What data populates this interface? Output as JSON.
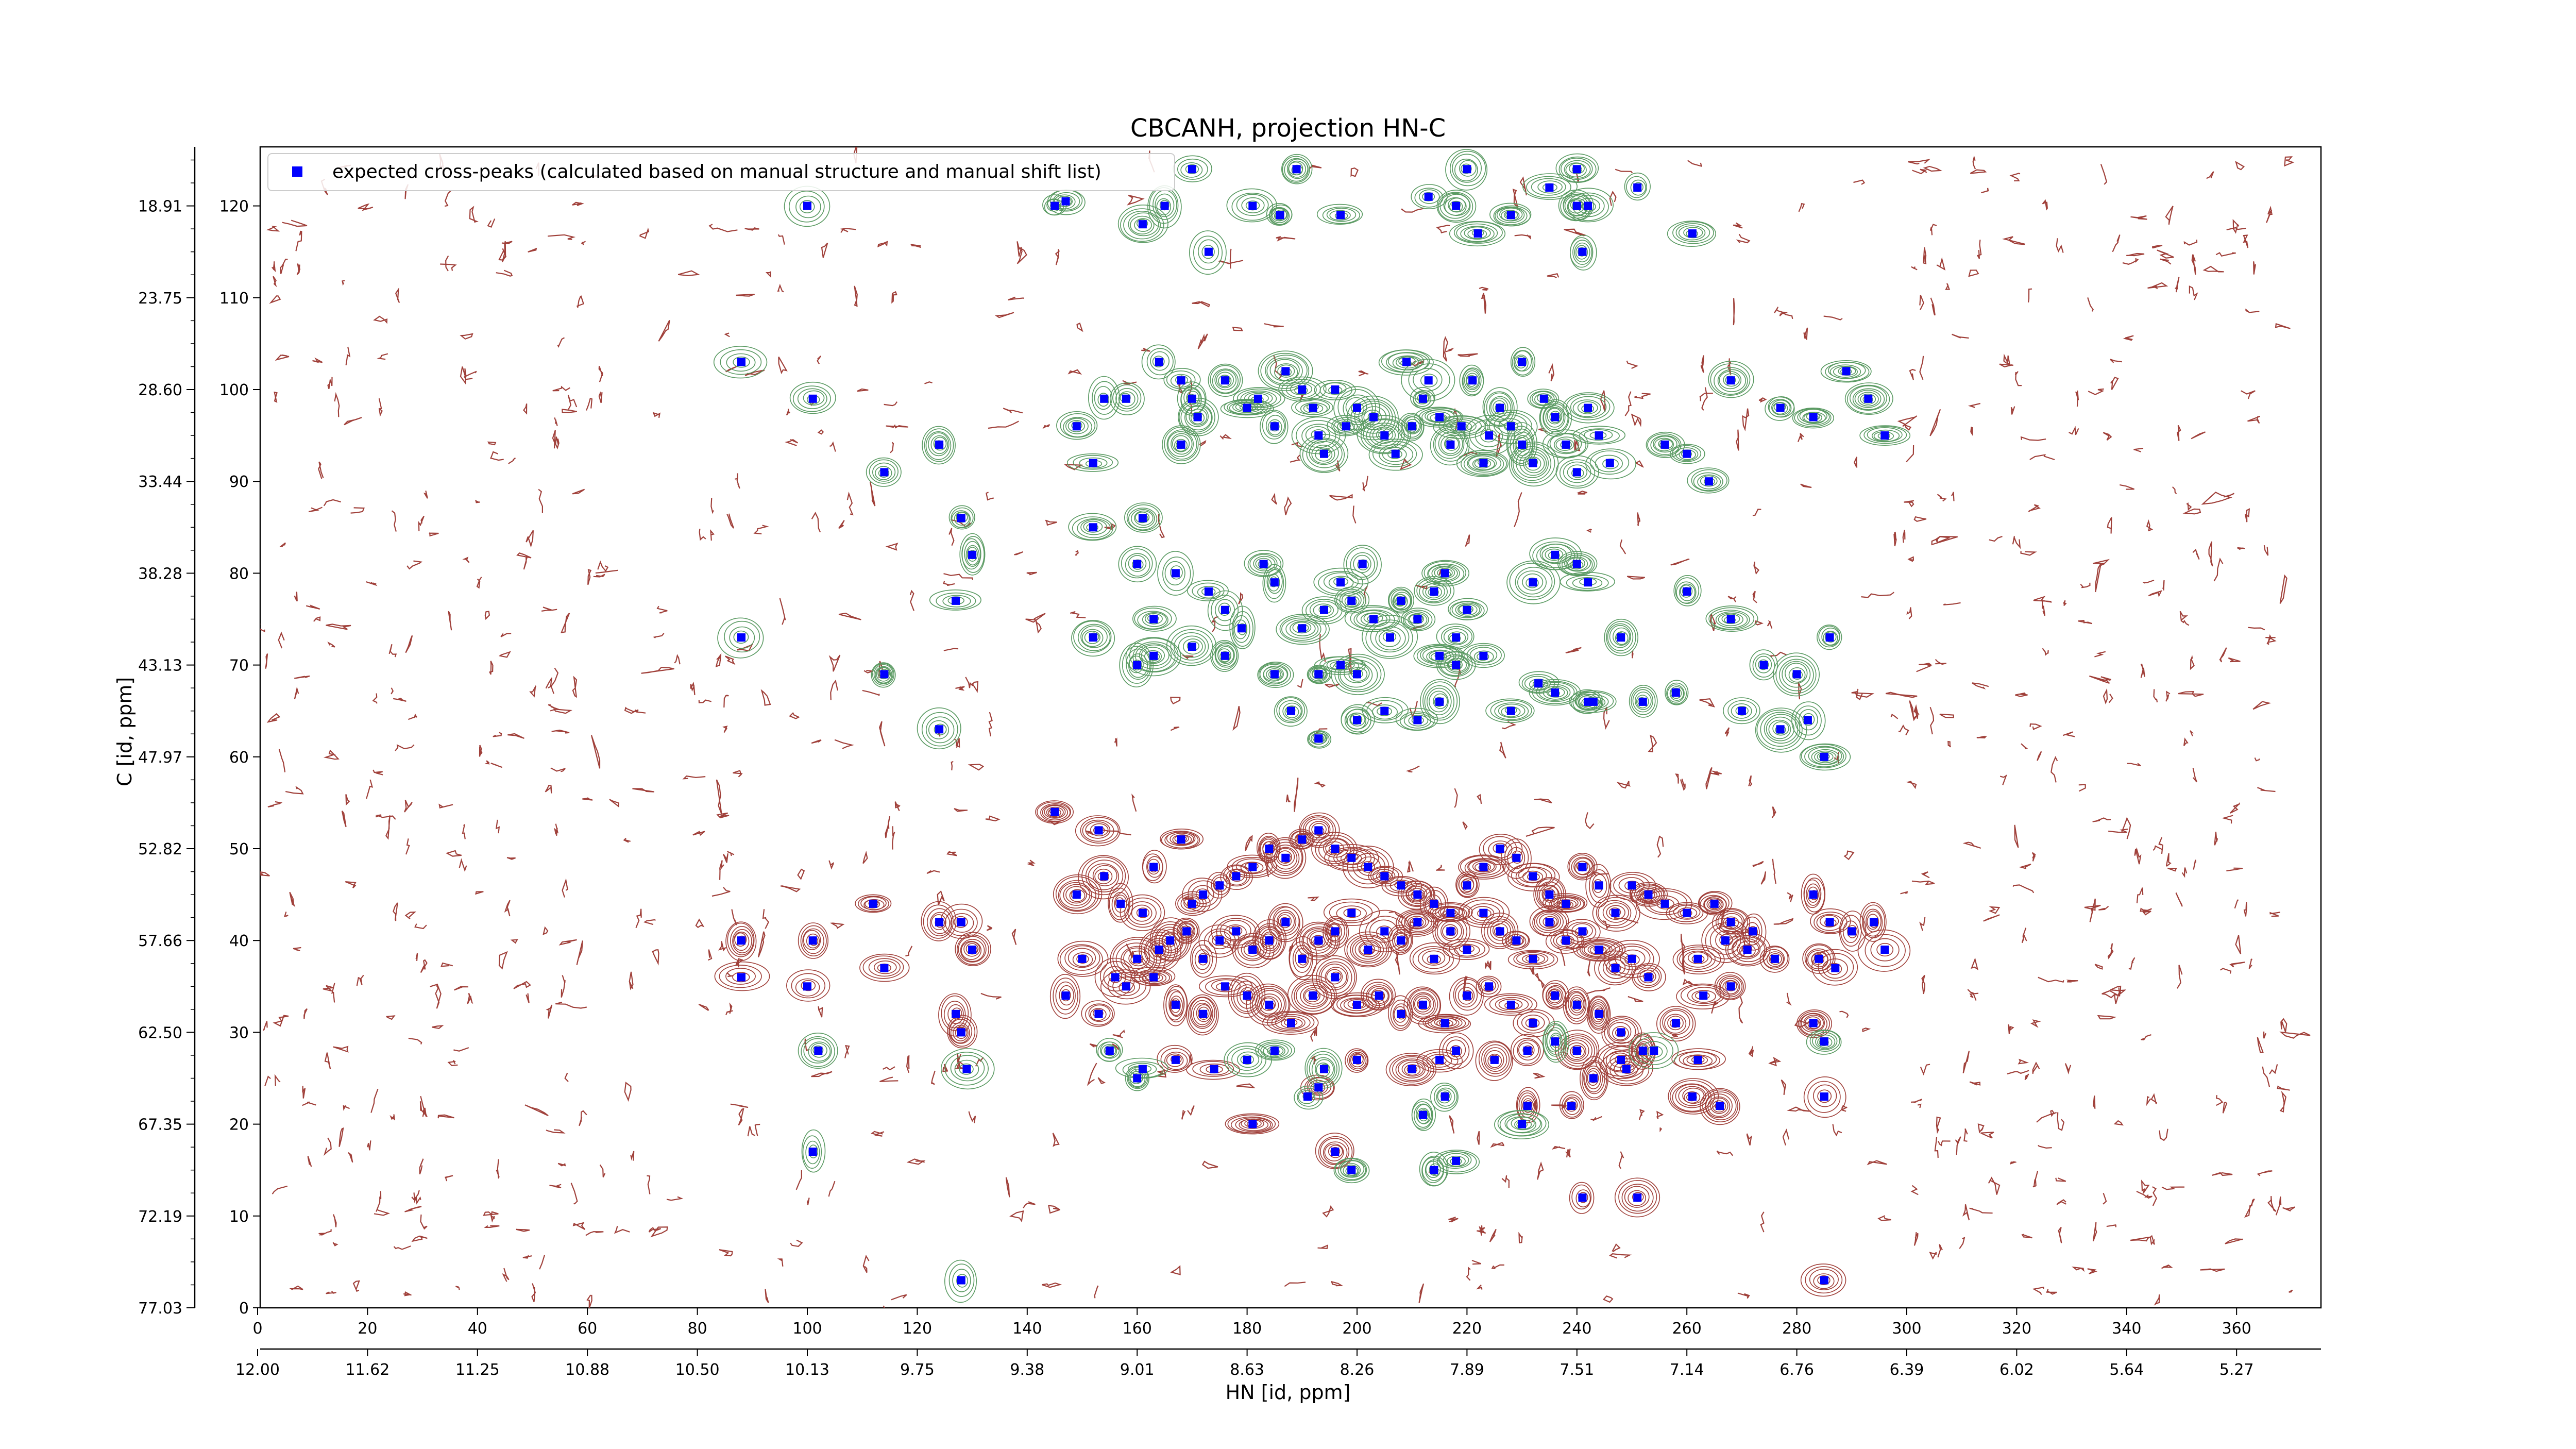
{
  "chart_data": {
    "type": "scatter",
    "title": "CBCANH, projection HN-C",
    "xlabel": "HN [id, ppm]",
    "ylabel": "C [id, ppm]",
    "x_index_ticks": [
      "0",
      "20",
      "40",
      "60",
      "80",
      "100",
      "120",
      "140",
      "160",
      "180",
      "200",
      "220",
      "240",
      "260",
      "280",
      "300",
      "320",
      "340",
      "360"
    ],
    "x_ppm_ticks": [
      "12.00",
      "11.62",
      "11.25",
      "10.88",
      "10.50",
      "10.13",
      "9.75",
      "9.38",
      "9.01",
      "8.63",
      "8.26",
      "7.89",
      "7.51",
      "7.14",
      "6.76",
      "6.39",
      "6.02",
      "5.64",
      "5.27"
    ],
    "y_index_ticks": [
      "0",
      "10",
      "20",
      "30",
      "40",
      "50",
      "60",
      "70",
      "80",
      "90",
      "100",
      "110",
      "120"
    ],
    "y_ppm_ticks": [
      "77.03",
      "72.19",
      "67.35",
      "62.50",
      "57.66",
      "52.82",
      "47.97",
      "43.13",
      "38.28",
      "33.44",
      "28.60",
      "23.75",
      "18.91"
    ],
    "xlim": [
      0,
      375
    ],
    "ylim": [
      0,
      125
    ],
    "grid": false,
    "legend_position": "top-left",
    "colors": {
      "marker": "#0000ff",
      "positive_contour": "#a0403a",
      "negative_contour": "#5a9a62",
      "axis": "#000000"
    },
    "series": [
      {
        "name": "expected cross-peaks (calculated based on manual structure and manual shift list)",
        "points": [
          [
            100,
            120
          ],
          [
            145,
            120
          ],
          [
            147,
            120.5
          ],
          [
            165,
            120
          ],
          [
            181,
            120
          ],
          [
            222,
            117
          ],
          [
            261,
            117
          ],
          [
            170,
            124
          ],
          [
            189,
            124
          ],
          [
            220,
            124
          ],
          [
            240,
            124
          ],
          [
            251,
            122
          ],
          [
            235,
            122
          ],
          [
            240,
            120
          ],
          [
            242,
            120
          ],
          [
            161,
            118
          ],
          [
            173,
            115
          ],
          [
            186,
            119
          ],
          [
            197,
            119
          ],
          [
            213,
            121
          ],
          [
            218,
            120
          ],
          [
            228,
            119
          ],
          [
            241,
            115
          ],
          [
            88,
            103
          ],
          [
            101,
            99
          ],
          [
            114,
            91
          ],
          [
            124,
            94
          ],
          [
            128,
            86
          ],
          [
            130,
            82
          ],
          [
            127,
            77
          ],
          [
            149,
            96
          ],
          [
            152,
            92
          ],
          [
            152,
            85
          ],
          [
            154,
            99
          ],
          [
            158,
            99
          ],
          [
            161,
            86
          ],
          [
            164,
            103
          ],
          [
            168,
            101
          ],
          [
            170,
            99
          ],
          [
            168,
            94
          ],
          [
            171,
            97
          ],
          [
            176,
            101
          ],
          [
            180,
            98
          ],
          [
            182,
            99
          ],
          [
            185,
            96
          ],
          [
            187,
            102
          ],
          [
            190,
            100
          ],
          [
            192,
            98
          ],
          [
            193,
            95
          ],
          [
            194,
            93
          ],
          [
            196,
            100
          ],
          [
            198,
            96
          ],
          [
            200,
            98
          ],
          [
            203,
            97
          ],
          [
            205,
            95
          ],
          [
            207,
            93
          ],
          [
            210,
            96
          ],
          [
            212,
            99
          ],
          [
            215,
            97
          ],
          [
            217,
            94
          ],
          [
            219,
            96
          ],
          [
            221,
            101
          ],
          [
            223,
            92
          ],
          [
            224,
            95
          ],
          [
            226,
            98
          ],
          [
            228,
            96
          ],
          [
            230,
            94
          ],
          [
            232,
            92
          ],
          [
            234,
            99
          ],
          [
            236,
            97
          ],
          [
            238,
            94
          ],
          [
            240,
            91
          ],
          [
            242,
            98
          ],
          [
            244,
            95
          ],
          [
            246,
            92
          ],
          [
            209,
            103
          ],
          [
            213,
            101
          ],
          [
            230,
            103
          ],
          [
            256,
            94
          ],
          [
            260,
            93
          ],
          [
            264,
            90
          ],
          [
            268,
            101
          ],
          [
            277,
            98
          ],
          [
            283,
            97
          ],
          [
            289,
            102
          ],
          [
            293,
            99
          ],
          [
            296,
            95
          ],
          [
            160,
            81
          ],
          [
            163,
            75
          ],
          [
            167,
            80
          ],
          [
            173,
            78
          ],
          [
            176,
            76
          ],
          [
            179,
            74
          ],
          [
            183,
            81
          ],
          [
            185,
            79
          ],
          [
            190,
            74
          ],
          [
            194,
            76
          ],
          [
            197,
            79
          ],
          [
            199,
            77
          ],
          [
            201,
            81
          ],
          [
            203,
            75
          ],
          [
            206,
            73
          ],
          [
            208,
            77
          ],
          [
            211,
            75
          ],
          [
            214,
            78
          ],
          [
            216,
            80
          ],
          [
            218,
            73
          ],
          [
            220,
            76
          ],
          [
            223,
            71
          ],
          [
            232,
            79
          ],
          [
            236,
            82
          ],
          [
            240,
            81
          ],
          [
            242,
            79
          ],
          [
            248,
            73
          ],
          [
            260,
            78
          ],
          [
            268,
            75
          ],
          [
            274,
            70
          ],
          [
            286,
            73
          ],
          [
            88,
            73
          ],
          [
            114,
            69
          ],
          [
            124,
            63
          ],
          [
            152,
            73
          ],
          [
            160,
            70
          ],
          [
            163,
            71
          ],
          [
            170,
            72
          ],
          [
            176,
            71
          ],
          [
            185,
            69
          ],
          [
            193,
            69
          ],
          [
            197,
            70
          ],
          [
            200,
            69
          ],
          [
            215,
            71
          ],
          [
            218,
            70
          ],
          [
            233,
            68
          ],
          [
            242,
            66
          ],
          [
            280,
            69
          ],
          [
            188,
            65
          ],
          [
            193,
            62
          ],
          [
            200,
            64
          ],
          [
            205,
            65
          ],
          [
            211,
            64
          ],
          [
            215,
            66
          ],
          [
            228,
            65
          ],
          [
            236,
            67
          ],
          [
            243,
            66
          ],
          [
            252,
            66
          ],
          [
            258,
            67
          ],
          [
            270,
            65
          ],
          [
            277,
            63
          ],
          [
            282,
            64
          ],
          [
            285,
            60
          ],
          [
            145,
            54
          ],
          [
            153,
            52
          ],
          [
            154,
            47
          ],
          [
            149,
            45
          ],
          [
            157,
            44
          ],
          [
            161,
            43
          ],
          [
            163,
            48
          ],
          [
            168,
            51
          ],
          [
            170,
            44
          ],
          [
            172,
            45
          ],
          [
            175,
            46
          ],
          [
            178,
            47
          ],
          [
            181,
            48
          ],
          [
            184,
            50
          ],
          [
            187,
            49
          ],
          [
            190,
            51
          ],
          [
            193,
            52
          ],
          [
            196,
            50
          ],
          [
            199,
            49
          ],
          [
            202,
            48
          ],
          [
            205,
            47
          ],
          [
            208,
            46
          ],
          [
            211,
            45
          ],
          [
            214,
            44
          ],
          [
            217,
            43
          ],
          [
            220,
            46
          ],
          [
            223,
            48
          ],
          [
            226,
            50
          ],
          [
            229,
            49
          ],
          [
            232,
            47
          ],
          [
            235,
            45
          ],
          [
            238,
            44
          ],
          [
            241,
            48
          ],
          [
            244,
            46
          ],
          [
            247,
            43
          ],
          [
            250,
            46
          ],
          [
            253,
            45
          ],
          [
            256,
            44
          ],
          [
            260,
            43
          ],
          [
            265,
            44
          ],
          [
            268,
            42
          ],
          [
            272,
            41
          ],
          [
            283,
            45
          ],
          [
            286,
            42
          ],
          [
            290,
            41
          ],
          [
            294,
            42
          ],
          [
            150,
            38
          ],
          [
            156,
            36
          ],
          [
            160,
            38
          ],
          [
            164,
            39
          ],
          [
            166,
            40
          ],
          [
            169,
            41
          ],
          [
            172,
            38
          ],
          [
            175,
            40
          ],
          [
            178,
            41
          ],
          [
            181,
            39
          ],
          [
            184,
            40
          ],
          [
            187,
            42
          ],
          [
            190,
            38
          ],
          [
            193,
            40
          ],
          [
            196,
            41
          ],
          [
            199,
            43
          ],
          [
            202,
            39
          ],
          [
            205,
            41
          ],
          [
            208,
            40
          ],
          [
            211,
            42
          ],
          [
            214,
            38
          ],
          [
            217,
            41
          ],
          [
            220,
            39
          ],
          [
            223,
            43
          ],
          [
            226,
            41
          ],
          [
            229,
            40
          ],
          [
            232,
            38
          ],
          [
            235,
            42
          ],
          [
            238,
            40
          ],
          [
            241,
            41
          ],
          [
            244,
            39
          ],
          [
            247,
            37
          ],
          [
            250,
            38
          ],
          [
            253,
            36
          ],
          [
            262,
            38
          ],
          [
            267,
            40
          ],
          [
            271,
            39
          ],
          [
            276,
            38
          ],
          [
            284,
            38
          ],
          [
            287,
            37
          ],
          [
            296,
            39
          ],
          [
            88,
            40
          ],
          [
            88,
            36
          ],
          [
            100,
            35
          ],
          [
            101,
            40
          ],
          [
            112,
            44
          ],
          [
            114,
            37
          ],
          [
            124,
            42
          ],
          [
            128,
            42
          ],
          [
            130,
            39
          ],
          [
            147,
            34
          ],
          [
            153,
            32
          ],
          [
            158,
            35
          ],
          [
            163,
            36
          ],
          [
            167,
            33
          ],
          [
            172,
            32
          ],
          [
            176,
            35
          ],
          [
            180,
            34
          ],
          [
            184,
            33
          ],
          [
            188,
            31
          ],
          [
            192,
            34
          ],
          [
            196,
            36
          ],
          [
            200,
            33
          ],
          [
            204,
            34
          ],
          [
            208,
            32
          ],
          [
            212,
            33
          ],
          [
            216,
            31
          ],
          [
            220,
            34
          ],
          [
            224,
            35
          ],
          [
            228,
            33
          ],
          [
            232,
            31
          ],
          [
            236,
            34
          ],
          [
            240,
            33
          ],
          [
            244,
            32
          ],
          [
            248,
            30
          ],
          [
            252,
            28
          ],
          [
            258,
            31
          ],
          [
            263,
            34
          ],
          [
            268,
            35
          ],
          [
            283,
            31
          ],
          [
            285,
            29
          ],
          [
            102,
            28
          ],
          [
            127,
            32
          ],
          [
            128,
            30
          ],
          [
            129,
            26
          ],
          [
            155,
            28
          ],
          [
            161,
            26
          ],
          [
            167,
            27
          ],
          [
            174,
            26
          ],
          [
            180,
            27
          ],
          [
            185,
            28
          ],
          [
            194,
            26
          ],
          [
            200,
            27
          ],
          [
            210,
            26
          ],
          [
            215,
            27
          ],
          [
            218,
            28
          ],
          [
            225,
            27
          ],
          [
            231,
            28
          ],
          [
            236,
            29
          ],
          [
            240,
            28
          ],
          [
            248,
            27
          ],
          [
            254,
            28
          ],
          [
            262,
            27
          ],
          [
            160,
            25
          ],
          [
            193,
            24
          ],
          [
            216,
            23
          ],
          [
            231,
            22
          ],
          [
            243,
            25
          ],
          [
            249,
            26
          ],
          [
            266,
            22
          ],
          [
            285,
            23
          ],
          [
            181,
            20
          ],
          [
            191,
            23
          ],
          [
            212,
            21
          ],
          [
            230,
            20
          ],
          [
            239,
            22
          ],
          [
            261,
            23
          ],
          [
            196,
            17
          ],
          [
            199,
            15
          ],
          [
            214,
            15
          ],
          [
            218,
            16
          ],
          [
            101,
            17
          ],
          [
            241,
            12
          ],
          [
            251,
            12
          ],
          [
            128,
            3
          ],
          [
            285,
            3
          ]
        ]
      }
    ]
  }
}
